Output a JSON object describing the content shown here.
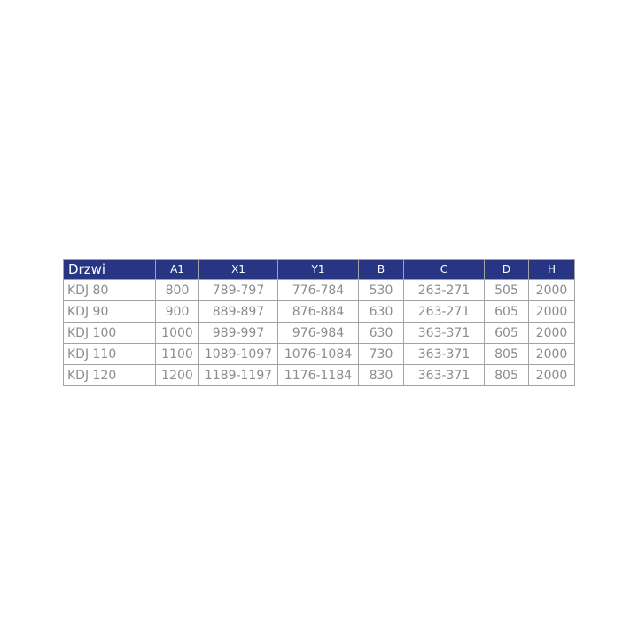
{
  "table": {
    "headers": [
      "Drzwi",
      "A1",
      "X1",
      "Y1",
      "B",
      "C",
      "D",
      "H"
    ],
    "rows": [
      [
        "KDJ 80",
        "800",
        "789-797",
        "776-784",
        "530",
        "263-271",
        "505",
        "2000"
      ],
      [
        "KDJ 90",
        "900",
        "889-897",
        "876-884",
        "630",
        "263-271",
        "605",
        "2000"
      ],
      [
        "KDJ 100",
        "1000",
        "989-997",
        "976-984",
        "630",
        "363-371",
        "605",
        "2000"
      ],
      [
        "KDJ 110",
        "1100",
        "1089-1097",
        "1076-1084",
        "730",
        "363-371",
        "805",
        "2000"
      ],
      [
        "KDJ 120",
        "1200",
        "1189-1197",
        "1176-1184",
        "830",
        "363-371",
        "805",
        "2000"
      ]
    ]
  },
  "colors": {
    "header_bg": "#283583",
    "header_text": "#ffffff",
    "cell_text": "#8c8c8c",
    "border": "#a3a3a3"
  }
}
